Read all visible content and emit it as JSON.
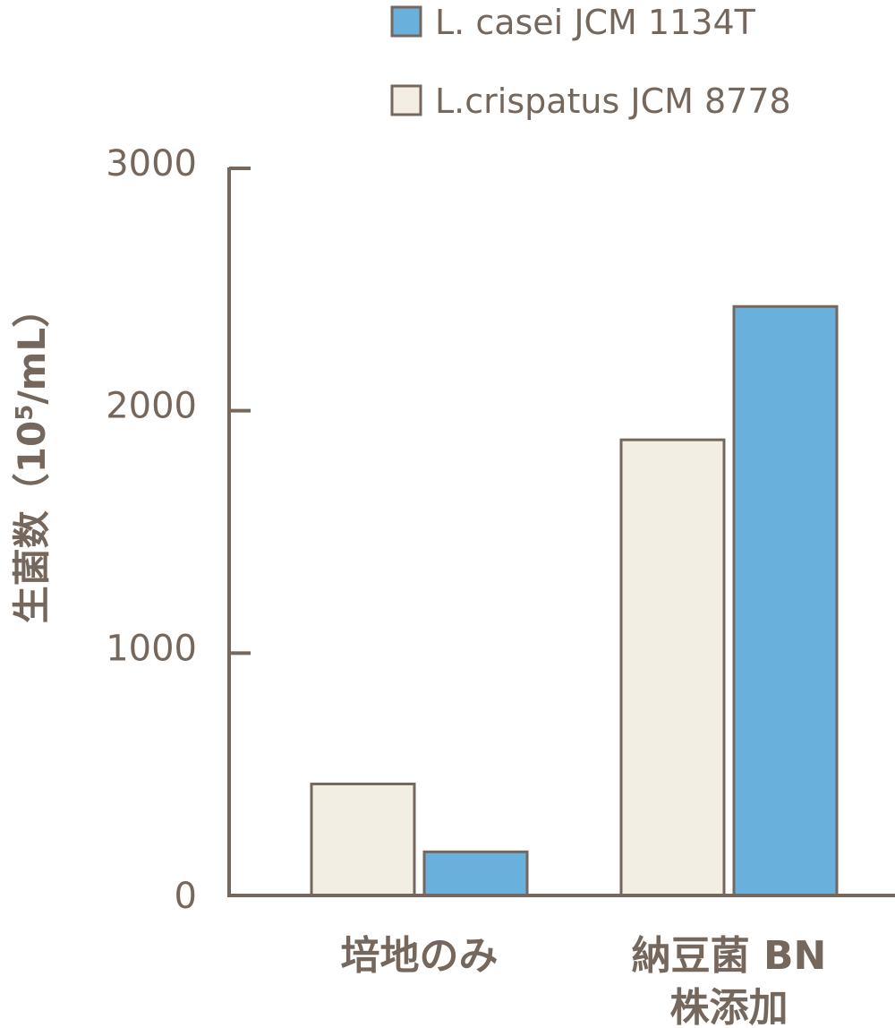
{
  "chart_data": {
    "type": "bar",
    "title": "",
    "xlabel": "",
    "ylabel": "生菌数（10⁵/mL）",
    "ylabel_parts": {
      "main": "生菌数（10",
      "sup": "5",
      "unit": "/mL）"
    },
    "ylim": [
      0,
      3000
    ],
    "yticks": [
      0,
      1000,
      2000,
      3000
    ],
    "grid": false,
    "legend_position": "top-right",
    "categories": [
      {
        "line1": "培地のみ",
        "line2": ""
      },
      {
        "line1": "納豆菌 BN",
        "line2": "株添加"
      }
    ],
    "series": [
      {
        "name": "L.crispatus JCM 8778",
        "color": "#f2eee3",
        "values": [
          460,
          1880
        ]
      },
      {
        "name": "L. casei JCM 1134T",
        "color": "#69b1dc",
        "values": [
          180,
          2430
        ]
      }
    ],
    "legend_order": [
      1,
      0
    ],
    "axis_color": "#76675c"
  }
}
